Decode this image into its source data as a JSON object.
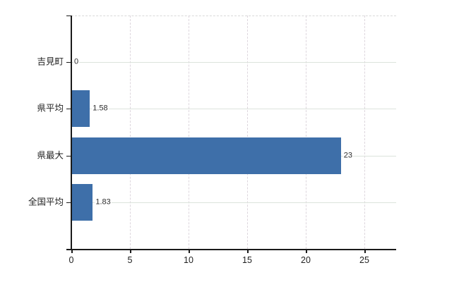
{
  "chart_data": {
    "type": "bar",
    "orientation": "horizontal",
    "title": "",
    "xlabel": "",
    "ylabel": "",
    "categories": [
      "吉見町",
      "県平均",
      "県最大",
      "全国平均"
    ],
    "values": [
      0,
      1.58,
      23,
      1.83
    ],
    "value_labels": [
      "0",
      "1.58",
      "23",
      "1.83"
    ],
    "x_ticks": [
      0,
      5,
      10,
      15,
      20,
      25
    ],
    "x_tick_labels": [
      "0",
      "5",
      "10",
      "15",
      "20",
      "25"
    ],
    "xlim": [
      0,
      27.71
    ],
    "grid": true,
    "legend": false,
    "colors": {
      "bar": "#3e6fa9",
      "axis": "#1a1a1a",
      "h_grid": "#dce3dc",
      "v_grid": "#ddd6dd",
      "top_border": "#d9d9d9",
      "text": "#1f1f1f",
      "value_text": "#2e2e2e",
      "background": "#ffffff"
    }
  }
}
